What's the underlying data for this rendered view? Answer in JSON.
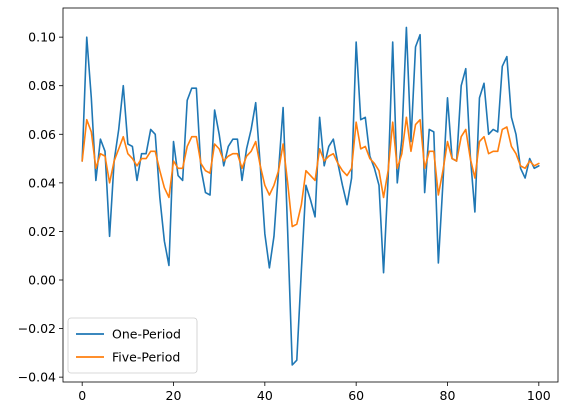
{
  "chart_data": {
    "type": "line",
    "title": "",
    "xlabel": "",
    "ylabel": "",
    "xlim": [
      -4.2,
      104.2
    ],
    "ylim": [
      -0.042,
      0.112
    ],
    "xticks": [
      0,
      20,
      40,
      60,
      80,
      100
    ],
    "yticks": [
      -0.04,
      -0.02,
      0.0,
      0.02,
      0.04,
      0.06,
      0.08,
      0.1
    ],
    "xtick_labels": [
      "0",
      "20",
      "40",
      "60",
      "80",
      "100"
    ],
    "ytick_labels": [
      "−0.04",
      "−0.02",
      "0.00",
      "0.02",
      "0.04",
      "0.06",
      "0.08",
      "0.10"
    ],
    "grid": false,
    "legend_position": "lower-left",
    "series": [
      {
        "name": "One-Period",
        "color": "#1f77b4",
        "x": [
          0,
          1,
          2,
          3,
          4,
          5,
          6,
          7,
          8,
          9,
          10,
          11,
          12,
          13,
          14,
          15,
          16,
          17,
          18,
          19,
          20,
          21,
          22,
          23,
          24,
          25,
          26,
          27,
          28,
          29,
          30,
          31,
          32,
          33,
          34,
          35,
          36,
          37,
          38,
          39,
          40,
          41,
          42,
          43,
          44,
          45,
          46,
          47,
          48,
          49,
          50,
          51,
          52,
          53,
          54,
          55,
          56,
          57,
          58,
          59,
          60,
          61,
          62,
          63,
          64,
          65,
          66,
          67,
          68,
          69,
          70,
          71,
          72,
          73,
          74,
          75,
          76,
          77,
          78,
          79,
          80,
          81,
          82,
          83,
          84,
          85,
          86,
          87,
          88,
          89,
          90,
          91,
          92,
          93,
          94,
          95,
          96,
          97,
          98,
          99,
          100
        ],
        "y": [
          0.049,
          0.1,
          0.075,
          0.041,
          0.058,
          0.053,
          0.018,
          0.049,
          0.062,
          0.08,
          0.056,
          0.055,
          0.041,
          0.052,
          0.052,
          0.062,
          0.06,
          0.034,
          0.016,
          0.006,
          0.057,
          0.043,
          0.041,
          0.074,
          0.079,
          0.079,
          0.046,
          0.036,
          0.035,
          0.07,
          0.06,
          0.047,
          0.055,
          0.058,
          0.058,
          0.041,
          0.054,
          0.062,
          0.073,
          0.047,
          0.019,
          0.005,
          0.018,
          0.045,
          0.071,
          0.02,
          -0.035,
          -0.033,
          0.004,
          0.039,
          0.033,
          0.026,
          0.067,
          0.047,
          0.055,
          0.058,
          0.048,
          0.039,
          0.031,
          0.042,
          0.098,
          0.066,
          0.067,
          0.051,
          0.046,
          0.039,
          0.003,
          0.042,
          0.098,
          0.04,
          0.058,
          0.104,
          0.057,
          0.096,
          0.101,
          0.036,
          0.062,
          0.061,
          0.007,
          0.04,
          0.075,
          0.05,
          0.049,
          0.08,
          0.087,
          0.051,
          0.028,
          0.075,
          0.081,
          0.06,
          0.062,
          0.061,
          0.088,
          0.092,
          0.067,
          0.06,
          0.046,
          0.042,
          0.05,
          0.046,
          0.047
        ]
      },
      {
        "name": "Five-Period",
        "color": "#ff7f0e",
        "x": [
          0,
          1,
          2,
          3,
          4,
          5,
          6,
          7,
          8,
          9,
          10,
          11,
          12,
          13,
          14,
          15,
          16,
          17,
          18,
          19,
          20,
          21,
          22,
          23,
          24,
          25,
          26,
          27,
          28,
          29,
          30,
          31,
          32,
          33,
          34,
          35,
          36,
          37,
          38,
          39,
          40,
          41,
          42,
          43,
          44,
          45,
          46,
          47,
          48,
          49,
          50,
          51,
          52,
          53,
          54,
          55,
          56,
          57,
          58,
          59,
          60,
          61,
          62,
          63,
          64,
          65,
          66,
          67,
          68,
          69,
          70,
          71,
          72,
          73,
          74,
          75,
          76,
          77,
          78,
          79,
          80,
          81,
          82,
          83,
          84,
          85,
          86,
          87,
          88,
          89,
          90,
          91,
          92,
          93,
          94,
          95,
          96,
          97,
          98,
          99,
          100
        ],
        "y": [
          0.049,
          0.066,
          0.061,
          0.046,
          0.052,
          0.051,
          0.04,
          0.049,
          0.054,
          0.059,
          0.052,
          0.05,
          0.047,
          0.05,
          0.05,
          0.053,
          0.053,
          0.045,
          0.038,
          0.034,
          0.049,
          0.046,
          0.046,
          0.055,
          0.059,
          0.059,
          0.048,
          0.045,
          0.044,
          0.056,
          0.054,
          0.049,
          0.051,
          0.052,
          0.052,
          0.046,
          0.051,
          0.053,
          0.057,
          0.047,
          0.039,
          0.035,
          0.039,
          0.045,
          0.056,
          0.04,
          0.022,
          0.023,
          0.031,
          0.045,
          0.043,
          0.041,
          0.054,
          0.049,
          0.051,
          0.052,
          0.048,
          0.045,
          0.043,
          0.046,
          0.065,
          0.054,
          0.055,
          0.05,
          0.048,
          0.045,
          0.034,
          0.045,
          0.065,
          0.046,
          0.052,
          0.067,
          0.053,
          0.064,
          0.066,
          0.046,
          0.053,
          0.053,
          0.035,
          0.045,
          0.057,
          0.05,
          0.049,
          0.059,
          0.062,
          0.05,
          0.042,
          0.057,
          0.059,
          0.052,
          0.053,
          0.053,
          0.062,
          0.063,
          0.055,
          0.052,
          0.047,
          0.046,
          0.049,
          0.047,
          0.048
        ]
      }
    ]
  }
}
